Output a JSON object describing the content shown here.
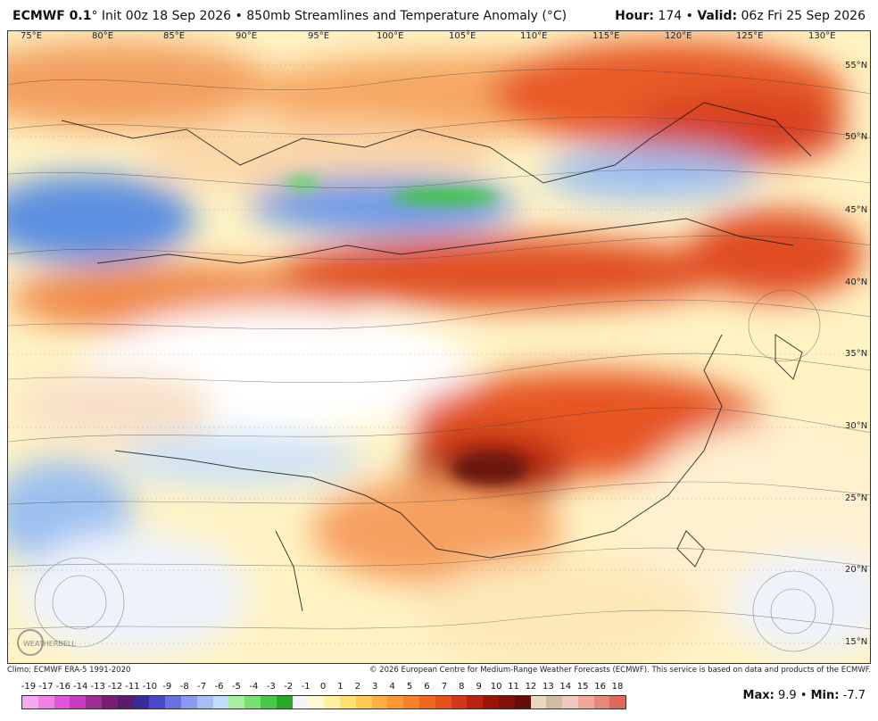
{
  "title": {
    "model": "ECMWF 0.1",
    "degree": "°",
    "init": "Init 00z 18 Sep 2026",
    "separator": "•",
    "product": "850mb Streamlines and Temperature Anomaly (°C)",
    "hour_label": "Hour:",
    "hour_value": "174",
    "valid_label": "Valid:",
    "valid_value": "06z Fri 25 Sep 2026"
  },
  "map": {
    "longitude_labels": [
      "75°E",
      "80°E",
      "85°E",
      "90°E",
      "95°E",
      "100°E",
      "105°E",
      "110°E",
      "115°E",
      "120°E",
      "125°E",
      "130°E"
    ],
    "latitude_labels": [
      "55°N",
      "50°N",
      "45°N",
      "40°N",
      "35°N",
      "30°N",
      "25°N",
      "20°N",
      "15°N"
    ],
    "logo_text": "WEATHERBELL"
  },
  "credits": {
    "climo": "Climo: ECMWF ERA-5 1991-2020",
    "copyright": "© 2026 European Centre for Medium-Range Weather Forecasts (ECMWF). This service is based on data and products of the ECMWF."
  },
  "legend": {
    "labels": [
      "-19",
      "-17",
      "-16",
      "-14",
      "-13",
      "-12",
      "-11",
      "-10",
      "-9",
      "-8",
      "-7",
      "-6",
      "-5",
      "-4",
      "-3",
      "-2",
      "-1",
      "0",
      "1",
      "2",
      "3",
      "4",
      "5",
      "6",
      "7",
      "8",
      "9",
      "10",
      "11",
      "12",
      "13",
      "14",
      "15",
      "16",
      "18"
    ],
    "colors": [
      "#f7a8f0",
      "#f07fe6",
      "#e056d8",
      "#c83cc0",
      "#a02c96",
      "#7a1f70",
      "#5a1a6e",
      "#3a2a9a",
      "#4a48c8",
      "#6a70e0",
      "#8a98f0",
      "#a8bcf8",
      "#c0dcfc",
      "#a8f0a0",
      "#78e070",
      "#48c848",
      "#28a828",
      "#f4f4f4",
      "#fffad0",
      "#fff0a0",
      "#ffe070",
      "#ffc850",
      "#ffb040",
      "#ff9830",
      "#f88028",
      "#f06820",
      "#e85018",
      "#d03818",
      "#b82410",
      "#9c1408",
      "#801008",
      "#640c08",
      "#e8d8c0",
      "#d0bca0",
      "#f0c8c0",
      "#f0a898",
      "#e88878",
      "#e06858"
    ]
  },
  "stats": {
    "max_label": "Max:",
    "max_value": "9.9",
    "separator": "•",
    "min_label": "Min:",
    "min_value": "-7.7"
  }
}
